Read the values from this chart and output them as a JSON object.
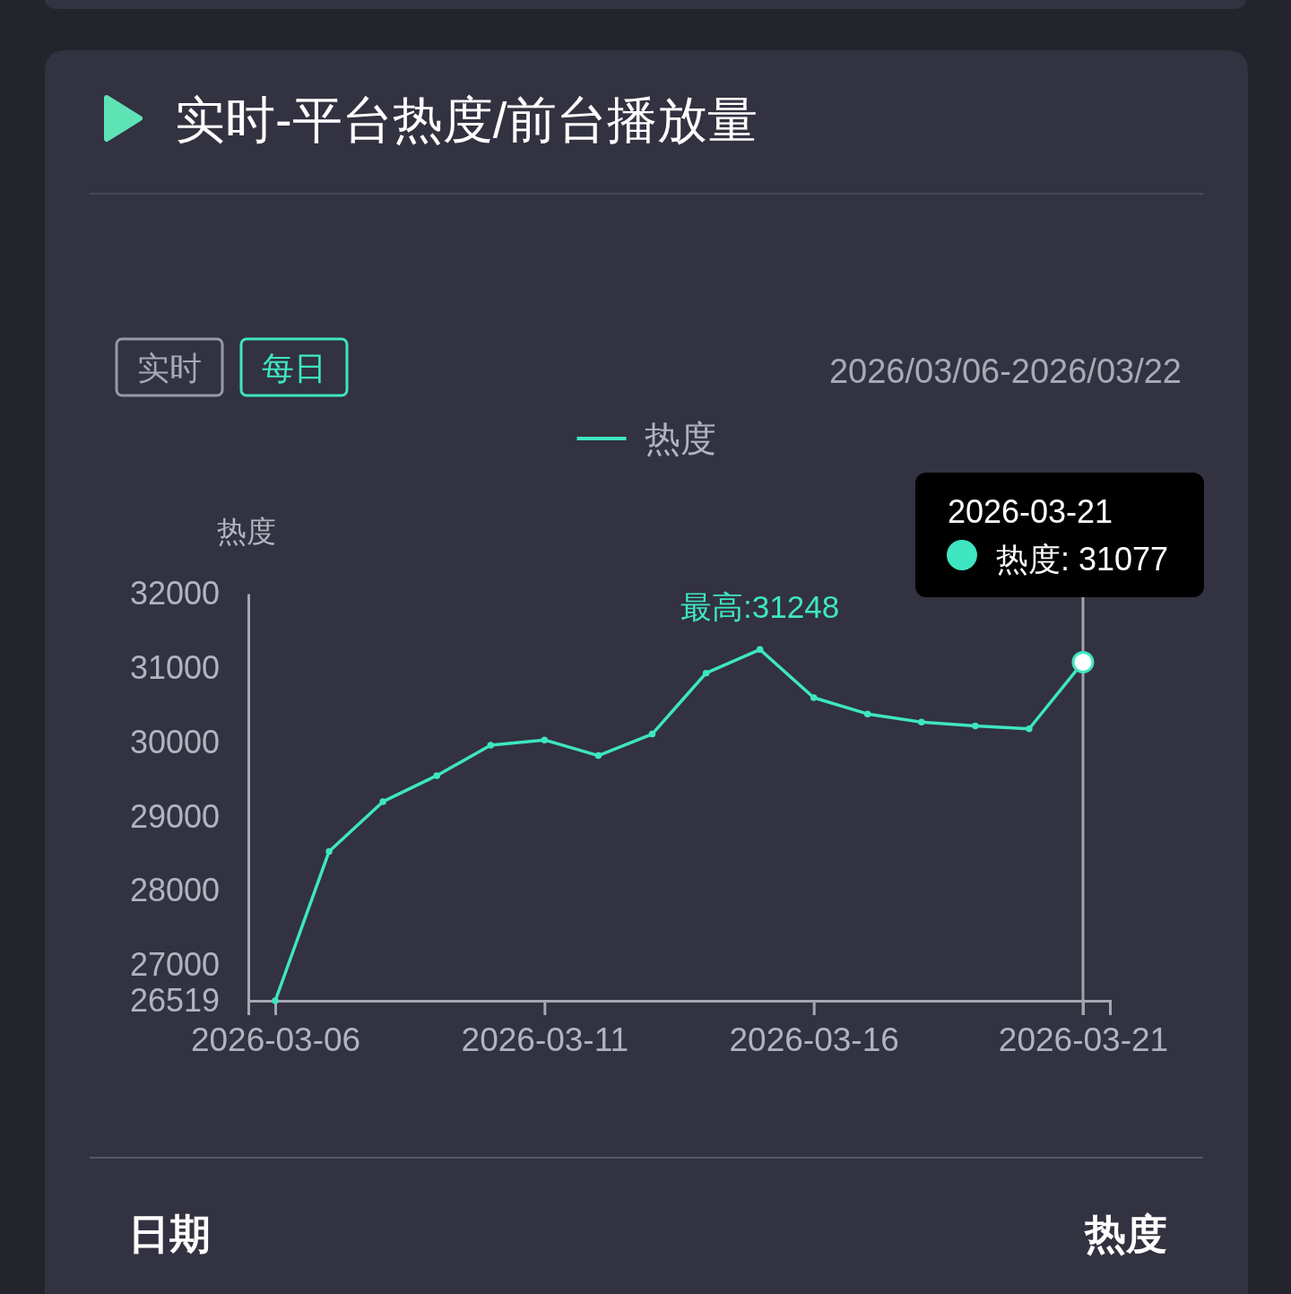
{
  "chart_data": {
    "type": "line",
    "title": "实时-平台热度/前台播放量",
    "subtitle": "2026/03/06-2026/03/22",
    "ylabel": "热度",
    "x": [
      "2026-03-06",
      "2026-03-07",
      "2026-03-08",
      "2026-03-09",
      "2026-03-10",
      "2026-03-11",
      "2026-03-12",
      "2026-03-13",
      "2026-03-14",
      "2026-03-15",
      "2026-03-16",
      "2026-03-17",
      "2026-03-18",
      "2026-03-19",
      "2026-03-20",
      "2026-03-21"
    ],
    "series": [
      {
        "name": "热度",
        "color": "#3ee6c1",
        "values": [
          26519,
          28530,
          29200,
          29550,
          29960,
          30030,
          29820,
          30110,
          30930,
          31248,
          30600,
          30380,
          30270,
          30220,
          30180,
          31077
        ]
      }
    ],
    "xlim": [
      "2026-03-05T12:00",
      "2026-03-21T12:00"
    ],
    "xticks": [
      "2026-03-06",
      "2026-03-11",
      "2026-03-16",
      "2026-03-21"
    ],
    "ylim": [
      26519,
      32000
    ],
    "yticks": [
      26519,
      27000,
      28000,
      29000,
      30000,
      31000,
      32000
    ],
    "legend": "top",
    "marker": "circle",
    "line_style": "solid",
    "ref_lines": [
      {
        "axis": "x",
        "value": "2026-03-21",
        "color": "#a3a3ab"
      }
    ],
    "annotations": [
      "实时",
      "每日",
      "2026-03-21",
      {
        "text": "最高:31248",
        "x": "2026-03-15",
        "y": 31248
      },
      {
        "text": "热度: 31077",
        "x": "2026-03-21",
        "y": 31077
      },
      "日期",
      "热度"
    ]
  }
}
